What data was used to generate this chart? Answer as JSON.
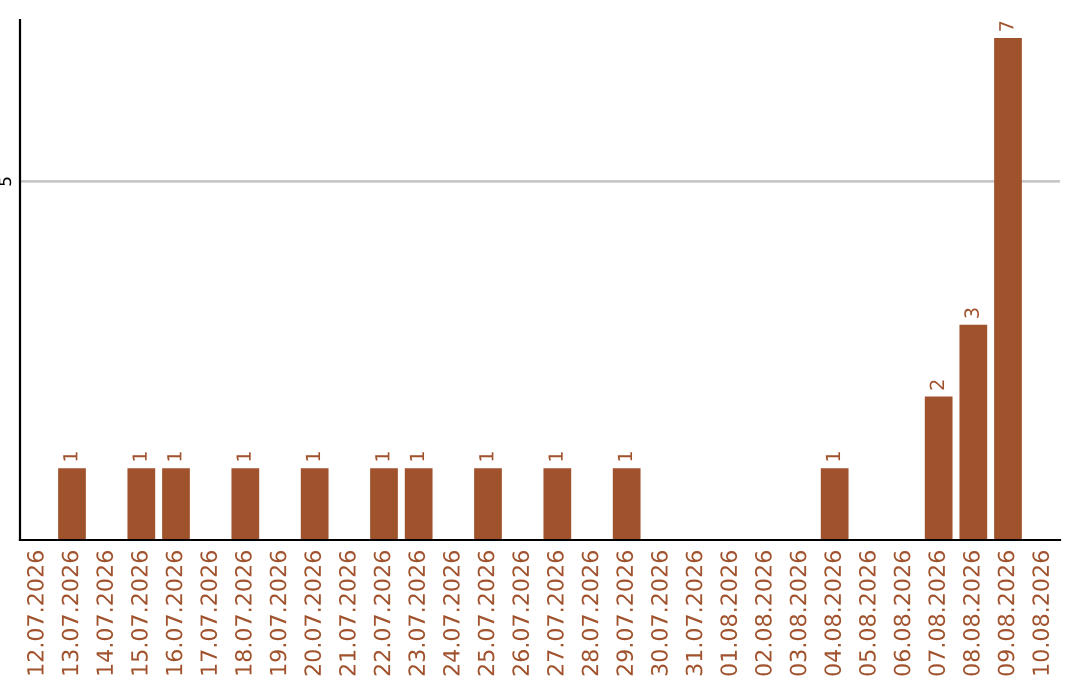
{
  "chart_data": {
    "type": "bar",
    "categories": [
      "12.07.2026",
      "13.07.2026",
      "14.07.2026",
      "15.07.2026",
      "16.07.2026",
      "17.07.2026",
      "18.07.2026",
      "19.07.2026",
      "20.07.2026",
      "21.07.2026",
      "22.07.2026",
      "23.07.2026",
      "24.07.2026",
      "25.07.2026",
      "26.07.2026",
      "27.07.2026",
      "28.07.2026",
      "29.07.2026",
      "30.07.2026",
      "31.07.2026",
      "01.08.2026",
      "02.08.2026",
      "03.08.2026",
      "04.08.2026",
      "05.08.2026",
      "06.08.2026",
      "07.08.2026",
      "08.08.2026",
      "09.08.2026",
      "10.08.2026"
    ],
    "values": [
      0,
      1,
      0,
      1,
      1,
      0,
      1,
      0,
      1,
      0,
      1,
      1,
      0,
      1,
      0,
      1,
      0,
      1,
      0,
      0,
      0,
      0,
      0,
      1,
      0,
      0,
      2,
      3,
      7,
      0
    ],
    "value_labels": [
      null,
      "1",
      null,
      "1",
      "1",
      null,
      "1",
      null,
      "1",
      null,
      "1",
      "1",
      null,
      "1",
      null,
      "1",
      null,
      "1",
      null,
      null,
      null,
      null,
      null,
      "1",
      null,
      null,
      "2",
      "3",
      "7",
      null
    ],
    "color": "#a0522d",
    "ylim": [
      0,
      7.25
    ],
    "yticks": [
      5
    ],
    "grid": "y"
  }
}
